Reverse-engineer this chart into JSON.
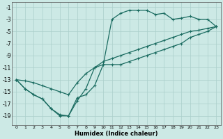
{
  "xlabel": "Humidex (Indice chaleur)",
  "xlim": [
    -0.5,
    23.5
  ],
  "ylim": [
    -20.5,
    -0.2
  ],
  "xticks": [
    0,
    1,
    2,
    3,
    4,
    5,
    6,
    7,
    8,
    9,
    10,
    11,
    12,
    13,
    14,
    15,
    16,
    17,
    18,
    19,
    20,
    21,
    22,
    23
  ],
  "yticks": [
    -19,
    -17,
    -15,
    -13,
    -11,
    -9,
    -7,
    -5,
    -3,
    -1
  ],
  "bg_color": "#cce9e5",
  "grid_color": "#aacfca",
  "line_color": "#1a6b60",
  "line1_x": [
    0,
    1,
    2,
    3,
    4,
    5,
    6,
    7,
    8,
    9,
    10,
    11,
    12,
    13,
    14,
    15,
    16,
    17,
    18,
    19,
    20,
    21,
    22,
    23
  ],
  "line1_y": [
    -13,
    -14.5,
    -15.5,
    -16.2,
    -17.8,
    -19,
    -19,
    -16,
    -15.5,
    -14,
    -10.5,
    -3,
    -2,
    -1.5,
    -1.5,
    -1.5,
    -2.2,
    -2,
    -3,
    -2.8,
    -2.5,
    -3,
    -3,
    -4.2
  ],
  "line2_x": [
    0,
    1,
    2,
    3,
    4,
    5,
    6,
    7,
    8,
    9,
    10,
    11,
    12,
    13,
    14,
    15,
    16,
    17,
    18,
    19,
    20,
    21,
    22,
    23
  ],
  "line2_y": [
    -13,
    -13.2,
    -13.5,
    -14,
    -14.5,
    -15,
    -15.5,
    -13.5,
    -12,
    -11,
    -10,
    -9.5,
    -9,
    -8.5,
    -8,
    -7.5,
    -7,
    -6.5,
    -6,
    -5.5,
    -5,
    -4.8,
    -4.5,
    -4.2
  ],
  "line3_x": [
    0,
    1,
    2,
    3,
    4,
    5,
    6,
    7,
    8,
    9,
    10,
    11,
    12,
    13,
    14,
    15,
    16,
    17,
    18,
    19,
    20,
    21,
    22,
    23
  ],
  "line3_y": [
    -13,
    -14.5,
    -15.5,
    -16.2,
    -17.8,
    -18.8,
    -19,
    -16.5,
    -14.5,
    -11,
    -10.5,
    -10.5,
    -10.5,
    -10,
    -9.5,
    -9,
    -8.5,
    -8,
    -7.5,
    -7,
    -6,
    -5.5,
    -5,
    -4.2
  ]
}
